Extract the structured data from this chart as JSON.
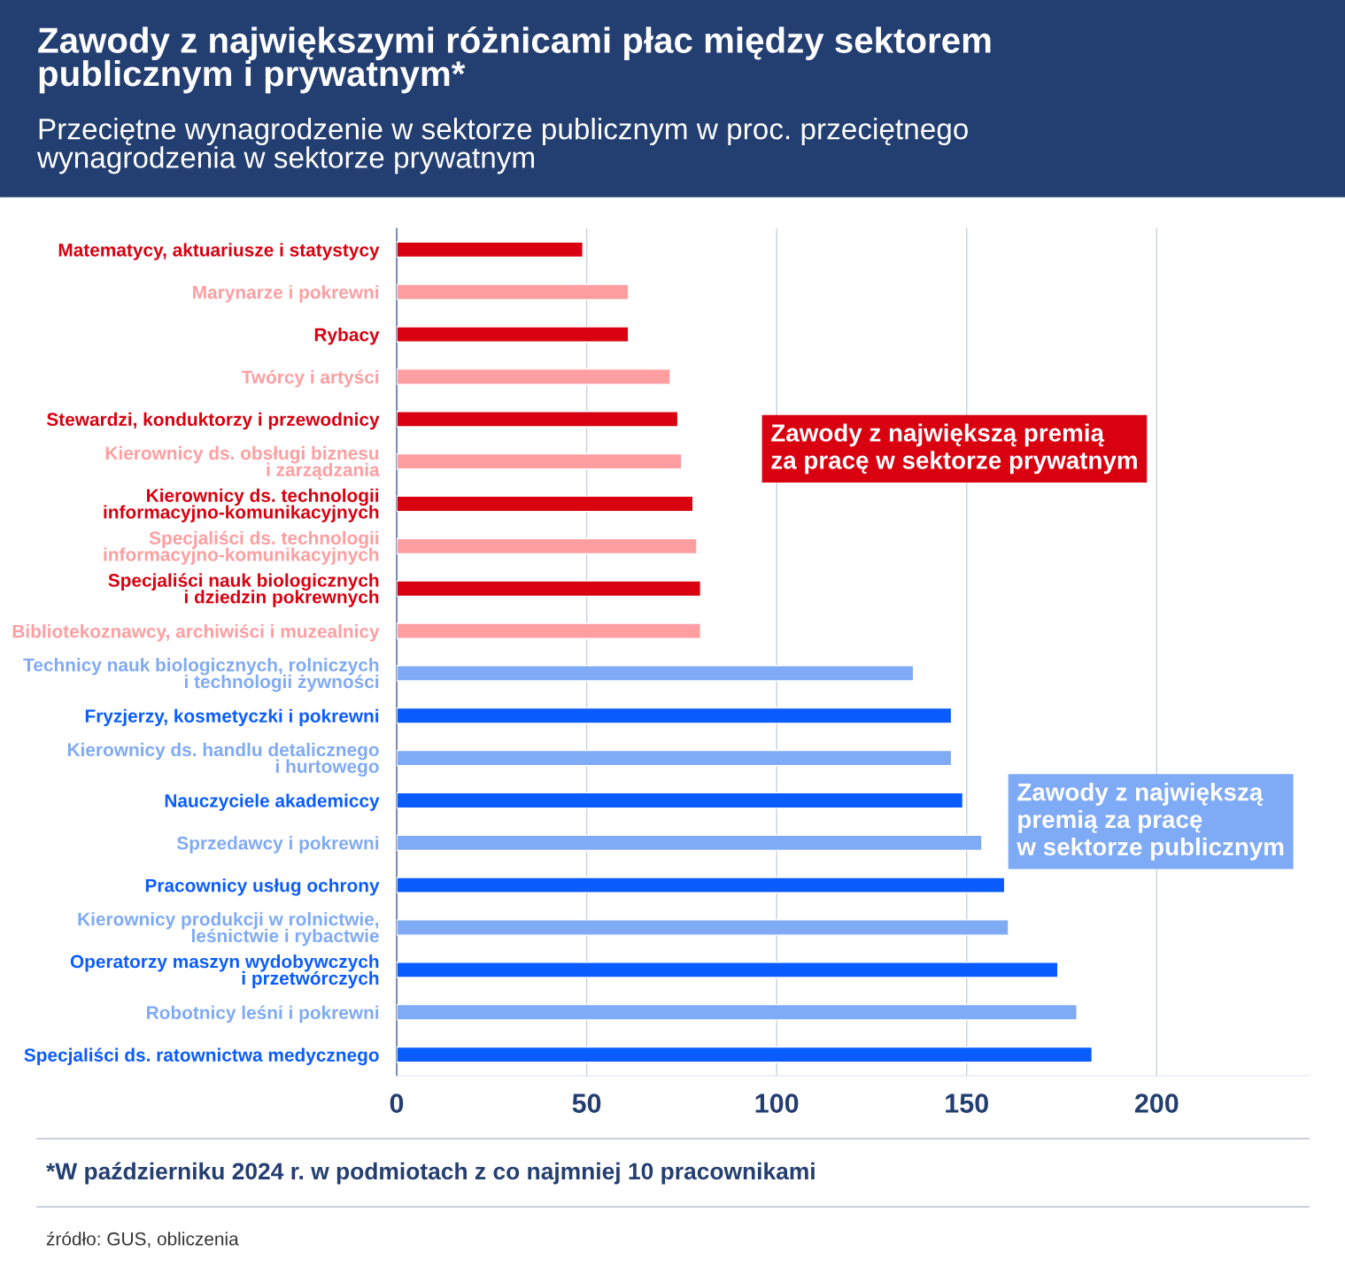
{
  "chart_data": {
    "type": "bar",
    "orientation": "horizontal",
    "title": "Zawody z największymi różnicami płac między sektorem\npublicznym i prywatnym*",
    "subtitle": "Przeciętne wynagrodzenie w sektorze publicznym w proc. przeciętnego\nwynagrodzenia w sektorze prywatnym",
    "categories": [
      "Matematycy, aktuariusze i statystycy",
      "Marynarze i pokrewni",
      "Rybacy",
      "Twórcy i artyści",
      "Stewardzi, konduktorzy i przewodnicy",
      "Kierownicy ds. obsługi biznesu\ni zarządzania",
      "Kierownicy ds. technologii\ninformacyjno-komunikacyjnych",
      "Specjaliści ds. technologii\ninformacyjno-komunikacyjnych",
      "Specjaliści nauk biologicznych\ni dziedzin pokrewnych",
      "Bibliotekoznawcy, archiwiści i muzealnicy",
      "Technicy nauk biologicznych, rolniczych\ni technologii żywności",
      "Fryzjerzy, kosmetyczki i pokrewni",
      "Kierownicy ds. handlu detalicznego\ni hurtowego",
      "Nauczyciele akademiccy",
      "Sprzedawcy i pokrewni",
      "Pracownicy usług ochrony",
      "Kierownicy produkcji w rolnictwie,\nleśnictwie i rybactwie",
      "Operatorzy maszyn wydobywczych\ni przetwórczych",
      "Robotnicy leśni i pokrewni",
      "Specjaliści ds. ratownictwa medycznego"
    ],
    "values": [
      49,
      61,
      61,
      72,
      74,
      75,
      78,
      79,
      80,
      80,
      136,
      146,
      146,
      149,
      154,
      160,
      161,
      174,
      179,
      183
    ],
    "colors": [
      "#d9000f",
      "#ff9ea1",
      "#d9000f",
      "#ff9ea1",
      "#d9000f",
      "#ff9ea1",
      "#d9000f",
      "#ff9ea1",
      "#d9000f",
      "#ff9ea1",
      "#7faaf5",
      "#0a5cff",
      "#7faaf5",
      "#0a5cff",
      "#7faaf5",
      "#0a5cff",
      "#7faaf5",
      "#0a5cff",
      "#7faaf5",
      "#0a5cff"
    ],
    "xlim": [
      0,
      240
    ],
    "xticks": [
      0,
      50,
      100,
      150,
      200
    ],
    "grid": "x",
    "annotations": [
      "Zawody z największą premią\nza pracę w sektorze prywatnym",
      "Zawody z największą\npremią za pracę\nw sektorze publicznym",
      "*W październiku 2024 r. w podmiotach z co najmniej 10 pracownikami",
      "źródło: GUS, obliczenia"
    ]
  }
}
